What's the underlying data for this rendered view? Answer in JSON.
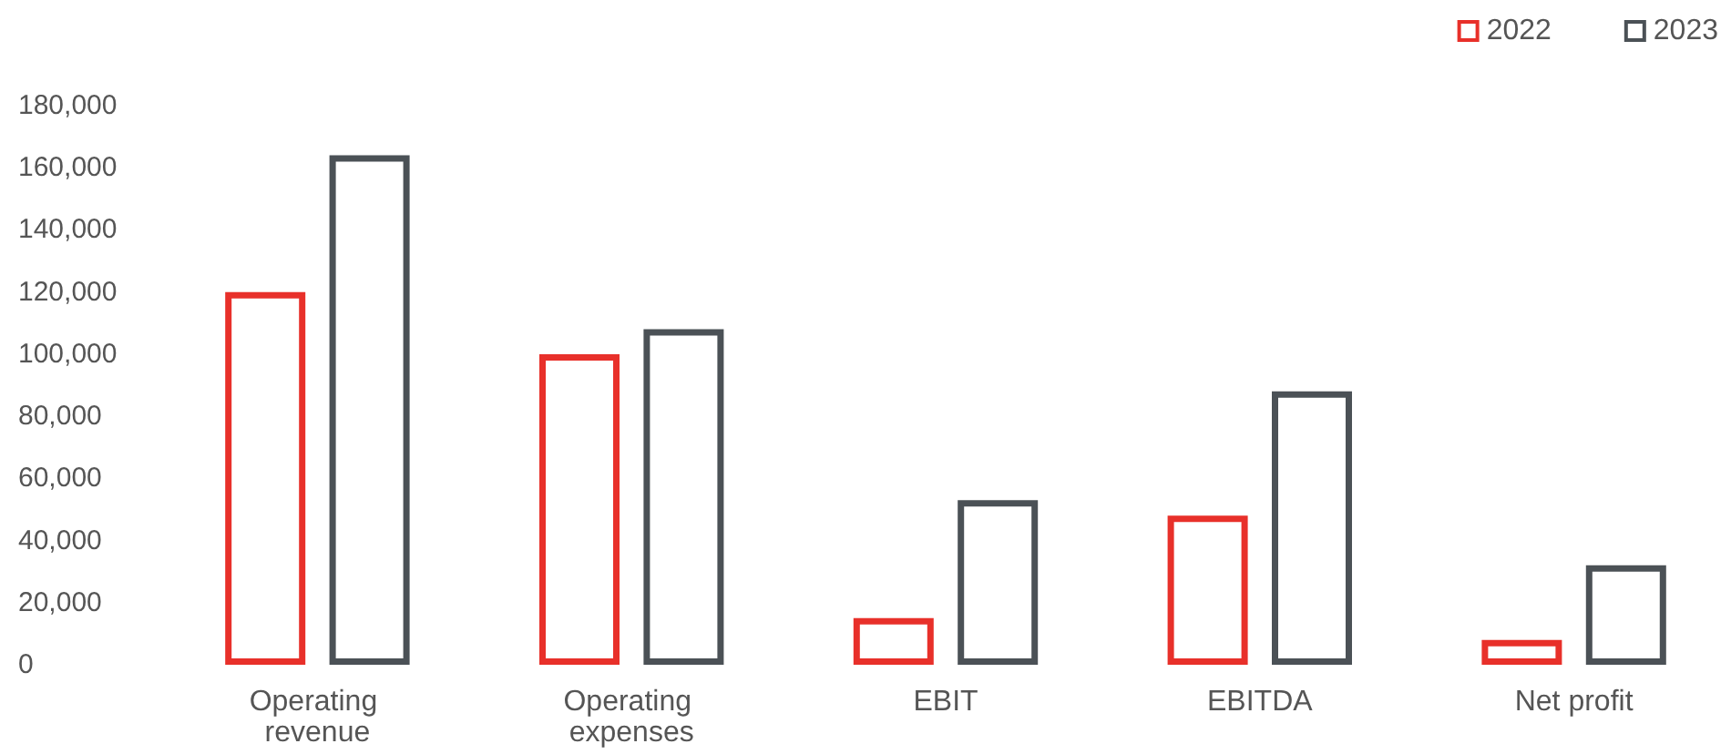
{
  "chart_data": {
    "type": "bar",
    "categories": [
      "Operating revenue",
      "Operating expenses",
      "EBIT",
      "EBITDA",
      "Net profit"
    ],
    "series": [
      {
        "name": "2022",
        "color": "#e8302a",
        "values": [
          120000,
          100000,
          15000,
          48000,
          8000
        ]
      },
      {
        "name": "2023",
        "color": "#4b5156",
        "values": [
          164000,
          108000,
          53000,
          88000,
          32000
        ]
      }
    ],
    "ylim": [
      0,
      180000
    ],
    "yticks": [
      0,
      {
        "value": 20000,
        "label": "20,000"
      },
      {
        "value": 40000,
        "label": "40,000"
      },
      {
        "value": 60000,
        "label": "60,000"
      },
      {
        "value": 80000,
        "label": "80,000"
      },
      {
        "value": 100000,
        "label": "100,000"
      },
      {
        "value": 120000,
        "label": "120,000"
      },
      {
        "value": 140000,
        "label": "140,000"
      },
      {
        "value": 160000,
        "label": "160,000"
      },
      {
        "value": 180000,
        "label": "180,000"
      }
    ],
    "grid": false,
    "legend": "top right"
  }
}
